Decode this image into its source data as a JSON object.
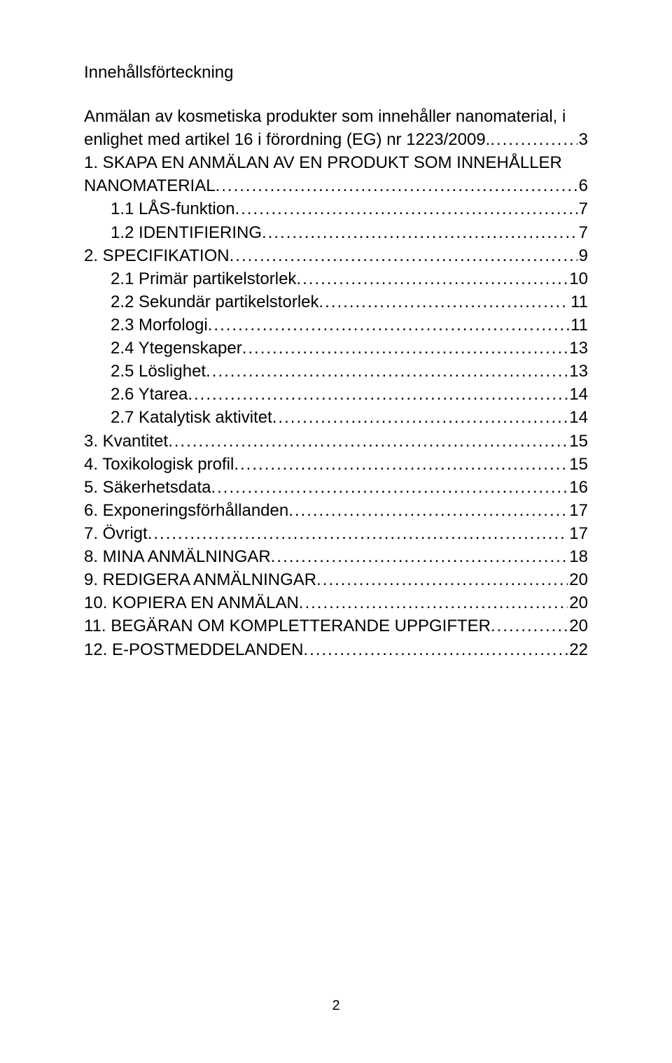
{
  "heading": "Innehållsförteckning",
  "entries": [
    {
      "label": "Anmälan av kosmetiska produkter som innehåller nanomaterial, i",
      "page": "",
      "indent": 0,
      "continuation": true
    },
    {
      "label": "enlighet med artikel 16 i förordning (EG) nr 1223/2009.",
      "page": "3",
      "indent": 0
    },
    {
      "label": "1. SKAPA EN ANMÄLAN AV EN PRODUKT SOM INNEHÅLLER",
      "page": "",
      "indent": 0,
      "continuation": true
    },
    {
      "label": "NANOMATERIAL",
      "page": "6",
      "indent": 0
    },
    {
      "label": "1.1 LÅS-funktion",
      "page": " 7",
      "indent": 1
    },
    {
      "label": "1.2 IDENTIFIERING",
      "page": " 7",
      "indent": 1
    },
    {
      "label": "2. SPECIFIKATION",
      "page": "9",
      "indent": 0
    },
    {
      "label": "2.1 Primär partikelstorlek",
      "page": " 10",
      "indent": 1
    },
    {
      "label": "2.2 Sekundär partikelstorlek",
      "page": " 11",
      "indent": 1
    },
    {
      "label": "2.3 Morfologi",
      "page": " 11",
      "indent": 1
    },
    {
      "label": "2.4 Ytegenskaper",
      "page": " 13",
      "indent": 1
    },
    {
      "label": "2.5 Löslighet",
      "page": " 13",
      "indent": 1
    },
    {
      "label": "2.6 Ytarea",
      "page": " 14",
      "indent": 1
    },
    {
      "label": "2.7 Katalytisk aktivitet",
      "page": " 14",
      "indent": 1
    },
    {
      "label": "3. Kvantitet",
      "page": "15",
      "indent": 0
    },
    {
      "label": "4. Toxikologisk profil",
      "page": "15",
      "indent": 0
    },
    {
      "label": "5. Säkerhetsdata",
      "page": "16",
      "indent": 0
    },
    {
      "label": "6. Exponeringsförhållanden",
      "page": "17",
      "indent": 0
    },
    {
      "label": "7. Övrigt",
      "page": "17",
      "indent": 0
    },
    {
      "label": "8. MINA ANMÄLNINGAR",
      "page": "18",
      "indent": 0
    },
    {
      "label": "9. REDIGERA ANMÄLNINGAR",
      "page": "20",
      "indent": 0
    },
    {
      "label": "10. KOPIERA EN ANMÄLAN",
      "page": "20",
      "indent": 0
    },
    {
      "label": "11. BEGÄRAN OM KOMPLETTERANDE UPPGIFTER",
      "page": "20",
      "indent": 0
    },
    {
      "label": "12. E-POSTMEDDELANDEN",
      "page": "22",
      "indent": 0
    }
  ],
  "page_number": "2"
}
